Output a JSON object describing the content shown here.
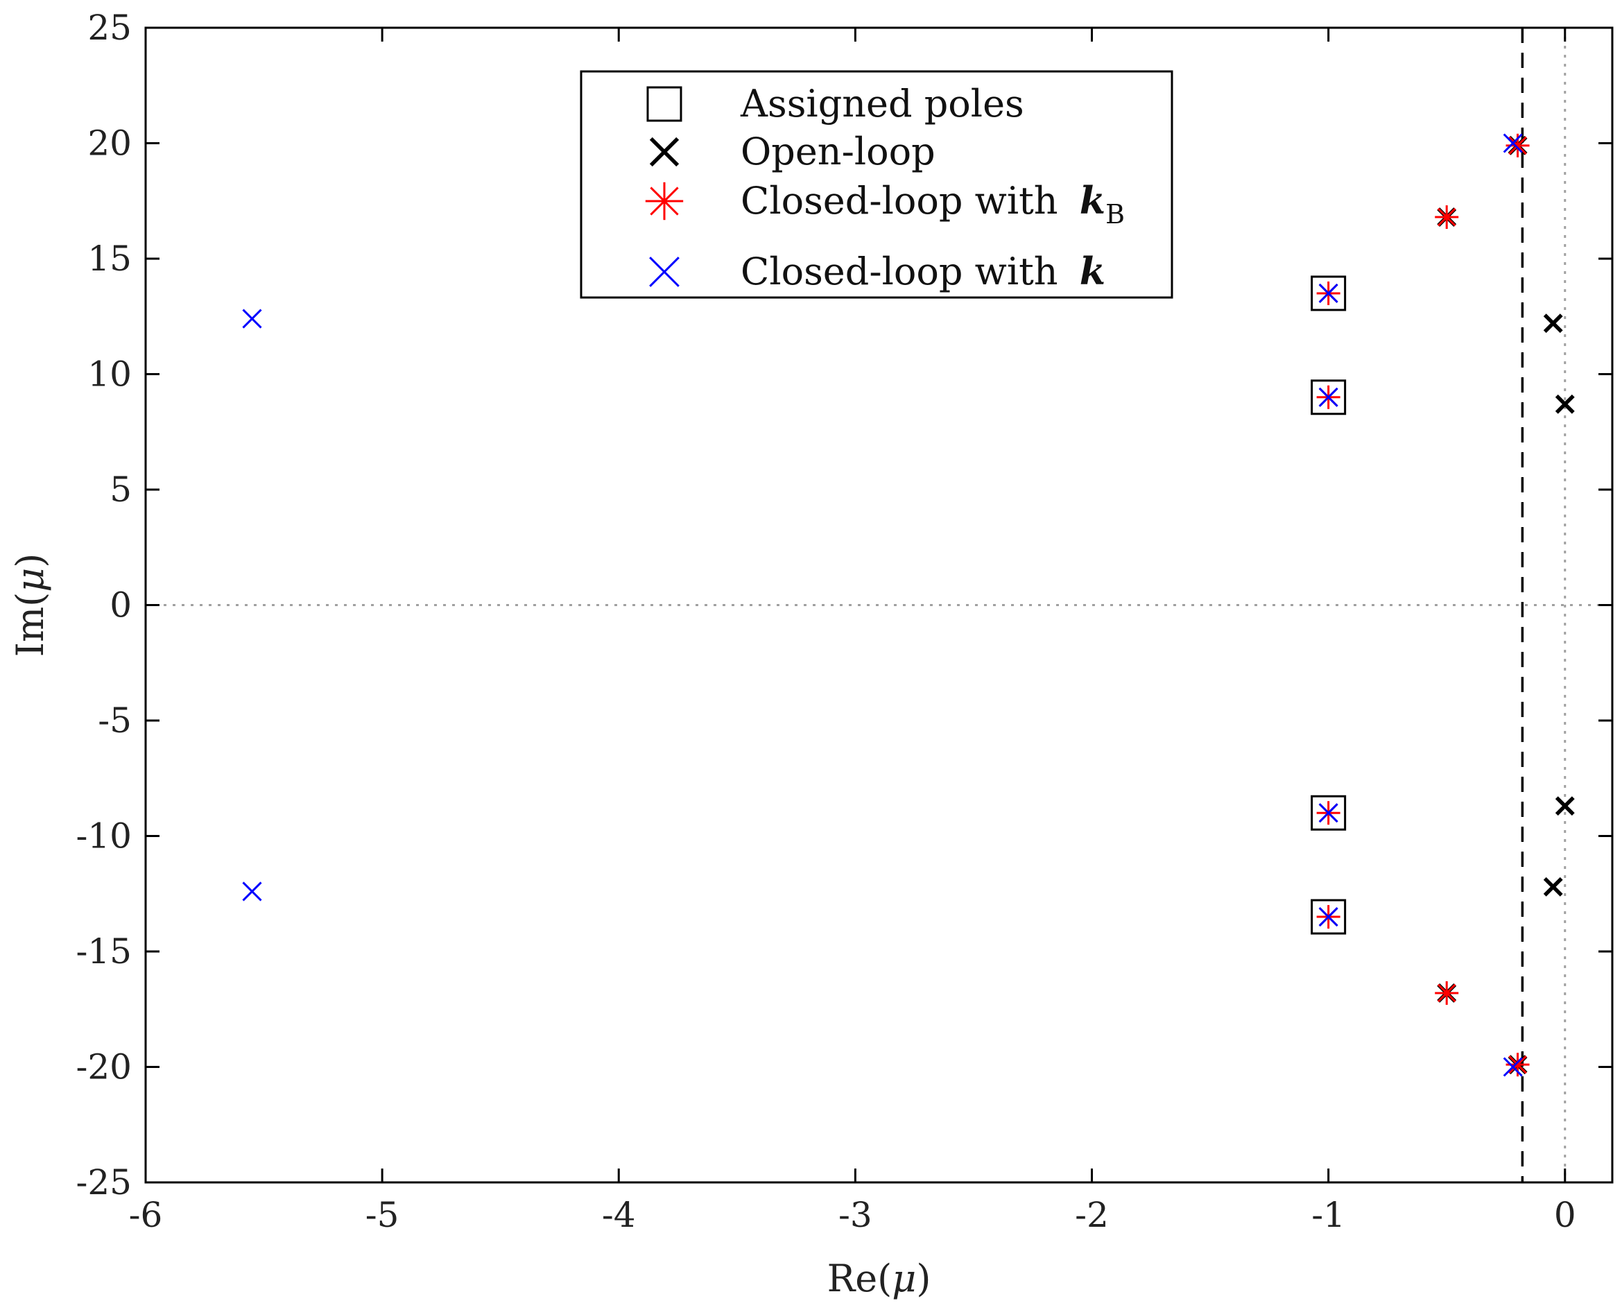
{
  "chart_data": {
    "type": "scatter",
    "title": "",
    "xlabel": {
      "prefix": "Re(",
      "symbol": "μ",
      "suffix": ")"
    },
    "ylabel": {
      "prefix": "Im(",
      "symbol": "μ",
      "suffix": ")"
    },
    "xlim": [
      -6,
      0.2
    ],
    "ylim": [
      -25,
      25
    ],
    "xticks": [
      -6,
      -5,
      -4,
      -3,
      -2,
      -1,
      0
    ],
    "yticks": [
      -25,
      -20,
      -15,
      -10,
      -5,
      0,
      5,
      10,
      15,
      20,
      25
    ],
    "xtick_labels": [
      "-6",
      "-5",
      "-4",
      "-3",
      "-2",
      "-1",
      "0"
    ],
    "ytick_labels": [
      "-25",
      "-20",
      "-15",
      "-10",
      "-5",
      "0",
      "5",
      "10",
      "15",
      "20",
      "25"
    ],
    "grid": false,
    "reference_lines": [
      {
        "name": "stability-margin-line",
        "orientation": "vertical",
        "value": -0.18,
        "style": "dashed",
        "color": "#000000"
      },
      {
        "name": "imaginary-axis-line",
        "orientation": "vertical",
        "value": 0,
        "style": "dotted",
        "color": "#a0a0a0"
      },
      {
        "name": "real-axis-line",
        "orientation": "horizontal",
        "value": 0,
        "style": "dotted",
        "color": "#a0a0a0"
      }
    ],
    "legend_position": "top-center",
    "legend": [
      {
        "label": "Assigned poles",
        "marker": "square",
        "color": "#000000"
      },
      {
        "label": "Open-loop",
        "marker": "x-bold",
        "color": "#000000"
      },
      {
        "label": "Closed-loop with ",
        "symbol": "k",
        "subscript": "B",
        "marker": "asterisk",
        "color": "#ff0000"
      },
      {
        "label": "Closed-loop with ",
        "symbol": "k",
        "subscript": "",
        "marker": "x-thin",
        "color": "#0000ff"
      }
    ],
    "series": [
      {
        "name": "Assigned poles",
        "marker": "square",
        "color": "#000000",
        "points": [
          [
            -1,
            13.5
          ],
          [
            -1,
            9
          ],
          [
            -1,
            -9
          ],
          [
            -1,
            -13.5
          ]
        ]
      },
      {
        "name": "Open-loop",
        "marker": "x-bold",
        "color": "#000000",
        "points": [
          [
            -0.05,
            12.2
          ],
          [
            0,
            8.7
          ],
          [
            0,
            -8.7
          ],
          [
            -0.05,
            -12.2
          ],
          [
            -0.2,
            19.9
          ],
          [
            -0.2,
            -19.9
          ],
          [
            -0.5,
            16.8
          ],
          [
            -0.5,
            -16.8
          ]
        ]
      },
      {
        "name": "Closed-loop with kB",
        "marker": "asterisk",
        "color": "#ff0000",
        "points": [
          [
            -0.2,
            19.9
          ],
          [
            -0.2,
            -19.9
          ],
          [
            -0.5,
            16.8
          ],
          [
            -0.5,
            -16.8
          ],
          [
            -1,
            13.5
          ],
          [
            -1,
            9
          ],
          [
            -1,
            -9
          ],
          [
            -1,
            -13.5
          ]
        ]
      },
      {
        "name": "Closed-loop with k",
        "marker": "x-thin",
        "color": "#0000ff",
        "points": [
          [
            -5.55,
            12.4
          ],
          [
            -5.55,
            -12.4
          ],
          [
            -0.22,
            20
          ],
          [
            -0.22,
            -20
          ],
          [
            -1,
            13.5
          ],
          [
            -1,
            9
          ],
          [
            -1,
            -9
          ],
          [
            -1,
            -13.5
          ]
        ]
      }
    ]
  }
}
